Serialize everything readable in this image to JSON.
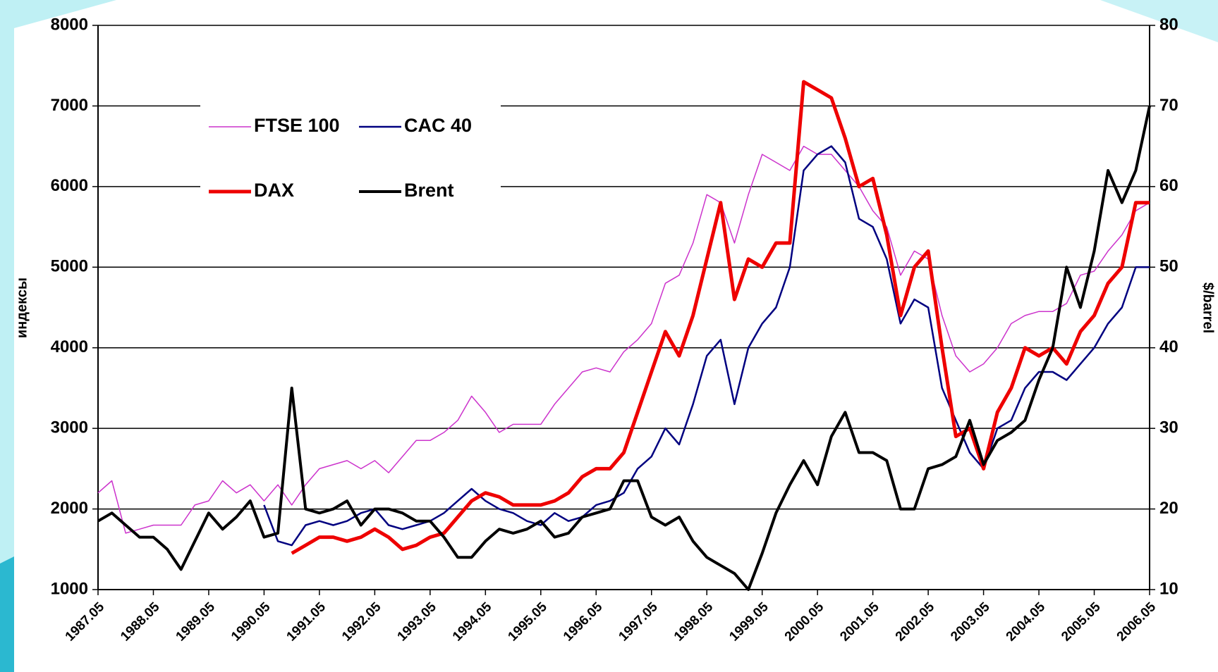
{
  "chart_data": {
    "type": "line",
    "ylabel": "индексы",
    "y2label": "$/barrel",
    "x": [
      1987.33,
      1987.58,
      1987.83,
      1988.08,
      1988.33,
      1988.58,
      1988.83,
      1989.08,
      1989.33,
      1989.58,
      1989.83,
      1990.08,
      1990.33,
      1990.58,
      1990.83,
      1991.08,
      1991.33,
      1991.58,
      1991.83,
      1992.08,
      1992.33,
      1992.58,
      1992.83,
      1993.08,
      1993.33,
      1993.58,
      1993.83,
      1994.08,
      1994.33,
      1994.58,
      1994.83,
      1995.08,
      1995.33,
      1995.58,
      1995.83,
      1996.08,
      1996.33,
      1996.58,
      1996.83,
      1997.08,
      1997.33,
      1997.58,
      1997.83,
      1998.08,
      1998.33,
      1998.58,
      1998.83,
      1999.08,
      1999.33,
      1999.58,
      1999.83,
      2000.08,
      2000.33,
      2000.58,
      2000.83,
      2001.08,
      2001.33,
      2001.58,
      2001.83,
      2002.08,
      2002.33,
      2002.58,
      2002.83,
      2003.08,
      2003.33,
      2003.58,
      2003.83,
      2004.08,
      2004.33,
      2004.58,
      2004.83,
      2005.08,
      2005.33,
      2005.58,
      2005.83,
      2006.08,
      2006.33
    ],
    "series": [
      {
        "name": "FTSE 100",
        "color": "#cc33cc",
        "line_width": 1.5,
        "values": [
          2200,
          2350,
          1700,
          1750,
          1800,
          1800,
          1800,
          2050,
          2100,
          2350,
          2200,
          2300,
          2100,
          2300,
          2050,
          2300,
          2500,
          2550,
          2600,
          2500,
          2600,
          2450,
          2650,
          2850,
          2850,
          2950,
          3100,
          3400,
          3200,
          2950,
          3050,
          3050,
          3050,
          3300,
          3500,
          3700,
          3750,
          3700,
          3950,
          4100,
          4300,
          4800,
          4900,
          5300,
          5900,
          5800,
          5300,
          5900,
          6400,
          6300,
          6200,
          6500,
          6400,
          6400,
          6200,
          6000,
          5700,
          5500,
          4900,
          5200,
          5100,
          4400,
          3900,
          3700,
          3800,
          4000,
          4300,
          4400,
          4450,
          4450,
          4550,
          4900,
          4950,
          5200,
          5400,
          5700,
          5800
        ]
      },
      {
        "name": "CAC 40",
        "color": "#000080",
        "line_width": 2.5,
        "values": [
          null,
          null,
          null,
          null,
          null,
          null,
          null,
          null,
          null,
          null,
          null,
          null,
          2050,
          1600,
          1550,
          1800,
          1850,
          1800,
          1850,
          1950,
          2000,
          1800,
          1750,
          1800,
          1850,
          1950,
          2100,
          2250,
          2100,
          2000,
          1950,
          1850,
          1800,
          1950,
          1850,
          1900,
          2050,
          2100,
          2200,
          2500,
          2650,
          3000,
          2800,
          3300,
          3900,
          4100,
          3300,
          4000,
          4300,
          4500,
          5000,
          6200,
          6400,
          6500,
          6300,
          5600,
          5500,
          5100,
          4300,
          4600,
          4500,
          3500,
          3100,
          2700,
          2500,
          3000,
          3100,
          3500,
          3700,
          3700,
          3600,
          3800,
          4000,
          4300,
          4500,
          5000,
          5000
        ]
      },
      {
        "name": "DAX",
        "color": "#ee0000",
        "line_width": 5,
        "values": [
          null,
          null,
          null,
          null,
          null,
          null,
          null,
          null,
          null,
          null,
          null,
          null,
          null,
          null,
          1450,
          1550,
          1650,
          1650,
          1600,
          1650,
          1750,
          1650,
          1500,
          1550,
          1650,
          1700,
          1900,
          2100,
          2200,
          2150,
          2050,
          2050,
          2050,
          2100,
          2200,
          2400,
          2500,
          2500,
          2700,
          3200,
          3700,
          4200,
          3900,
          4400,
          5100,
          5800,
          4600,
          5100,
          5000,
          5300,
          5300,
          7300,
          7200,
          7100,
          6600,
          6000,
          6100,
          5400,
          4400,
          5000,
          5200,
          4000,
          2900,
          3000,
          2500,
          3200,
          3500,
          4000,
          3900,
          4000,
          3800,
          4200,
          4400,
          4800,
          5000,
          5800,
          5800
        ]
      },
      {
        "name": "Brent",
        "color": "#000000",
        "line_width": 4,
        "axis": "y2",
        "values": [
          18.5,
          19.5,
          18,
          16.5,
          16.5,
          15,
          12.5,
          16,
          19.5,
          17.5,
          19,
          21,
          16.5,
          17,
          35,
          20,
          19.5,
          20,
          21,
          18,
          20,
          20,
          19.5,
          18.5,
          18.5,
          16.5,
          14,
          14,
          16,
          17.5,
          17,
          17.5,
          18.5,
          16.5,
          17,
          19,
          19.5,
          20,
          23.5,
          23.5,
          19,
          18,
          19,
          16,
          14,
          13,
          12,
          10,
          14.5,
          19.5,
          23,
          26,
          23,
          29,
          32,
          27,
          27,
          26,
          20,
          20,
          25,
          25.5,
          26.5,
          31,
          25.5,
          28.5,
          29.5,
          31,
          36,
          40,
          50,
          45,
          52,
          62,
          58,
          62,
          70
        ]
      }
    ],
    "xlim": [
      1987.33,
      2006.33
    ],
    "xticks": [
      {
        "value": 1987.33,
        "label": "1987.05"
      },
      {
        "value": 1988.33,
        "label": "1988.05"
      },
      {
        "value": 1989.33,
        "label": "1989.05"
      },
      {
        "value": 1990.33,
        "label": "1990.05"
      },
      {
        "value": 1991.33,
        "label": "1991.05"
      },
      {
        "value": 1992.33,
        "label": "1992.05"
      },
      {
        "value": 1993.33,
        "label": "1993.05"
      },
      {
        "value": 1994.33,
        "label": "1994.05"
      },
      {
        "value": 1995.33,
        "label": "1995.05"
      },
      {
        "value": 1996.33,
        "label": "1996.05"
      },
      {
        "value": 1997.33,
        "label": "1997.05"
      },
      {
        "value": 1998.33,
        "label": "1998.05"
      },
      {
        "value": 1999.33,
        "label": "1999.05"
      },
      {
        "value": 2000.33,
        "label": "2000.05"
      },
      {
        "value": 2001.33,
        "label": "2001.05"
      },
      {
        "value": 2002.33,
        "label": "2002.05"
      },
      {
        "value": 2003.33,
        "label": "2003.05"
      },
      {
        "value": 2004.33,
        "label": "2004.05"
      },
      {
        "value": 2005.33,
        "label": "2005.05"
      },
      {
        "value": 2006.33,
        "label": "2006.05"
      }
    ],
    "ylim": [
      1000,
      8000
    ],
    "yticks": [
      1000,
      2000,
      3000,
      4000,
      5000,
      6000,
      7000,
      8000
    ],
    "y2lim": [
      10,
      80
    ],
    "y2ticks": [
      10,
      20,
      30,
      40,
      50,
      60,
      70,
      80
    ],
    "grid": true
  }
}
